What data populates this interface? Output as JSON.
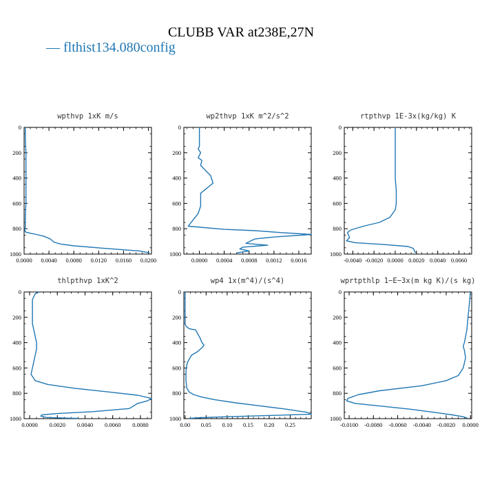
{
  "figure": {
    "title": "CLUBB VAR at238E,27N",
    "legend": {
      "label": "— flthist134.080config",
      "color": "#1f77b4"
    }
  },
  "chart_data": [
    {
      "type": "line",
      "title": "wpthvp  1xK m/s",
      "xlim": [
        0.0,
        0.0205
      ],
      "ylim": [
        1000,
        0
      ],
      "yticks": [
        "0",
        "200",
        "400",
        "600",
        "800",
        "1000"
      ],
      "xticks": [
        "0.0000",
        "0.0040",
        "0.0080",
        "0.0120",
        "0.0160",
        "0.0200"
      ],
      "xtick_values": [
        0.0,
        0.004,
        0.008,
        0.012,
        0.016,
        0.02
      ],
      "series": [
        {
          "color": "#1f77b4",
          "x": [
            0.0002,
            0.0002,
            0.0002,
            0.0003,
            0.0003,
            0.0003,
            0.0003,
            0.0003,
            0.0002,
            0.0002,
            0.0001,
            0.0002,
            0.0009,
            0.002,
            0.0032,
            0.0042,
            0.0048,
            0.0058,
            0.008,
            0.013,
            0.0185,
            0.0202
          ],
          "y": [
            0,
            50,
            100,
            200,
            300,
            400,
            500,
            600,
            700,
            780,
            810,
            825,
            835,
            845,
            860,
            880,
            905,
            920,
            935,
            955,
            975,
            990
          ]
        }
      ]
    },
    {
      "type": "line",
      "title": "wp2thvp  1xK m^2/s^2",
      "xlim": [
        -0.00025,
        0.0018
      ],
      "ylim": [
        1000,
        0
      ],
      "yticks": [
        "0",
        "200",
        "400",
        "600",
        "800",
        "1000"
      ],
      "xticks": [
        "0.0000",
        "0.0004",
        "0.0008",
        "0.0012",
        "0.0016"
      ],
      "xtick_values": [
        0.0,
        0.0004,
        0.0008,
        0.0012,
        0.0016
      ],
      "series": [
        {
          "color": "#1f77b4",
          "x": [
            0.0,
            0.0,
            0.0,
            -2e-05,
            2e-05,
            -2e-05,
            4e-05,
            2e-05,
            0.0001,
            0.00018,
            0.00022,
            0.00012,
            2e-05,
            2e-05,
            2e-05,
            -2e-05,
            -0.0001,
            -0.00018,
            0.0004,
            0.0009,
            0.0013,
            0.0018,
            0.0012,
            0.0009,
            0.00085,
            0.00075,
            0.0011,
            0.0007,
            0.00065,
            0.0008,
            0.0006
          ],
          "y": [
            0,
            80,
            150,
            170,
            200,
            240,
            260,
            300,
            340,
            380,
            440,
            480,
            520,
            560,
            620,
            680,
            730,
            780,
            805,
            815,
            830,
            845,
            865,
            880,
            890,
            915,
            930,
            945,
            960,
            975,
            990
          ]
        }
      ]
    },
    {
      "type": "line",
      "title": "rtpthvp  1E-3x(kg/kg) K",
      "xlim": [
        -0.0048,
        0.0072
      ],
      "ylim": [
        1000,
        0
      ],
      "yticks": [
        "0",
        "200",
        "400",
        "600",
        "800",
        "1000"
      ],
      "xticks": [
        "-0.0040",
        "-0.0020",
        "0.0000",
        "0.0020",
        "0.0040",
        "0.0060"
      ],
      "xtick_values": [
        -0.004,
        -0.002,
        0.0,
        0.002,
        0.004,
        0.006
      ],
      "series": [
        {
          "color": "#1f77b4",
          "x": [
            0.0,
            0.0,
            0.0,
            0.0,
            0.0,
            0.0001,
            0.0001,
            0.0,
            -0.0005,
            -0.0015,
            -0.003,
            -0.0042,
            -0.0045,
            -0.0044,
            -0.0043,
            -0.0046,
            -0.0038,
            -0.001,
            0.0012,
            0.0017,
            0.0019
          ],
          "y": [
            0,
            100,
            200,
            300,
            400,
            500,
            600,
            650,
            710,
            750,
            780,
            810,
            830,
            850,
            870,
            895,
            910,
            925,
            940,
            955,
            990
          ]
        }
      ]
    },
    {
      "type": "line",
      "title": "thlpthvp  1xK^2",
      "xlim": [
        -0.0004,
        0.0088
      ],
      "ylim": [
        1000,
        0
      ],
      "yticks": [
        "0",
        "200",
        "400",
        "600",
        "800",
        "1000"
      ],
      "xticks": [
        "0.0000",
        "0.0020",
        "0.0040",
        "0.0060",
        "0.0080"
      ],
      "xtick_values": [
        0.0,
        0.002,
        0.004,
        0.006,
        0.008
      ],
      "series": [
        {
          "color": "#1f77b4",
          "x": [
            0.0007,
            0.0004,
            0.0002,
            0.0002,
            0.0002,
            0.0003,
            0.0004,
            0.0005,
            0.0005,
            0.0004,
            0.0003,
            0.0002,
            0.0001,
            0.0004,
            0.0013,
            0.0032,
            0.0058,
            0.0078,
            0.0088,
            0.0085,
            0.0078,
            0.0072,
            0.0045,
            0.002,
            0.0009,
            0.0008,
            0.0012,
            0.0024,
            0.0035
          ],
          "y": [
            0,
            15,
            60,
            150,
            250,
            300,
            350,
            400,
            450,
            500,
            550,
            600,
            650,
            700,
            730,
            760,
            790,
            815,
            840,
            860,
            880,
            920,
            945,
            960,
            970,
            980,
            990,
            995,
            998
          ]
        }
      ]
    },
    {
      "type": "line",
      "title": "wp4  1x(m^4)/(s^4)",
      "xlim": [
        -0.003,
        0.3
      ],
      "ylim": [
        1000,
        0
      ],
      "yticks": [
        "0",
        "200",
        "400",
        "600",
        "800",
        "1000"
      ],
      "xticks": [
        "0.00",
        "0.05",
        "0.10",
        "0.15",
        "0.20",
        "0.25"
      ],
      "xtick_values": [
        0.0,
        0.05,
        0.1,
        0.15,
        0.2,
        0.25
      ],
      "series": [
        {
          "color": "#1f77b4",
          "x": [
            0.0,
            0.0,
            0.0,
            0.0,
            0.002,
            0.01,
            0.025,
            0.03,
            0.035,
            0.04,
            0.045,
            0.04,
            0.03,
            0.015,
            0.005,
            0.002,
            0.002,
            0.004,
            0.01,
            0.02,
            0.04,
            0.07,
            0.12,
            0.18,
            0.24,
            0.29,
            0.3,
            0.2,
            0.1,
            0.04,
            0.01
          ],
          "y": [
            0,
            100,
            200,
            250,
            270,
            290,
            300,
            330,
            360,
            400,
            420,
            440,
            470,
            500,
            560,
            620,
            700,
            760,
            790,
            810,
            830,
            850,
            875,
            900,
            925,
            950,
            965,
            975,
            985,
            992,
            998
          ]
        }
      ]
    },
    {
      "type": "line",
      "title": "wprtpthlp  1−E−3x(m kg K)/(s kg)",
      "xlim": [
        -0.0104,
        0.0001
      ],
      "ylim": [
        1000,
        0
      ],
      "yticks": [
        "0",
        "200",
        "400",
        "600",
        "800",
        "1000"
      ],
      "xticks": [
        "-0.0100",
        "-0.0080",
        "-0.0060",
        "-0.0040",
        "-0.0020",
        "0.0000"
      ],
      "xtick_values": [
        -0.01,
        -0.008,
        -0.006,
        -0.004,
        -0.002,
        0.0
      ],
      "series": [
        {
          "color": "#1f77b4",
          "x": [
            0.0,
            -0.0001,
            -0.0002,
            -0.0003,
            -0.0004,
            -0.0005,
            -0.0006,
            -0.0005,
            -0.0004,
            -0.0006,
            -0.001,
            -0.002,
            -0.004,
            -0.0075,
            -0.0092,
            -0.0101,
            -0.0102,
            -0.0095,
            -0.0075,
            -0.005,
            -0.003,
            -0.0015,
            -0.0006,
            -0.0002
          ],
          "y": [
            0,
            100,
            200,
            300,
            350,
            400,
            430,
            460,
            520,
            600,
            660,
            700,
            740,
            780,
            810,
            840,
            860,
            880,
            900,
            925,
            950,
            970,
            985,
            998
          ]
        }
      ]
    }
  ]
}
